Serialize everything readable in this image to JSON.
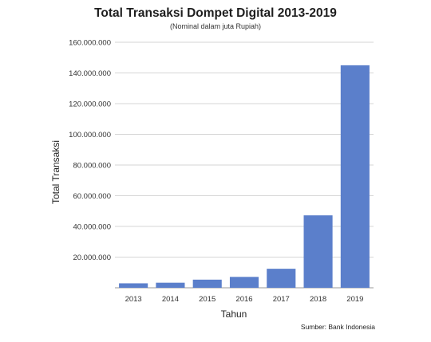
{
  "chart_data": {
    "type": "bar",
    "title": "Total Transaksi Dompet Digital 2013-2019",
    "subtitle": "(Nominal dalam juta Rupiah)",
    "xlabel": "Tahun",
    "ylabel": "Total Transaksi",
    "categories": [
      "2013",
      "2014",
      "2015",
      "2016",
      "2017",
      "2018",
      "2019"
    ],
    "values": [
      2900000,
      3300000,
      5300000,
      7100000,
      12400000,
      47200000,
      145000000
    ],
    "ylim": [
      0,
      160000000
    ],
    "yticks": [
      "20.000.000",
      "40.000.000",
      "60.000.000",
      "80.000.000",
      "100.000.000",
      "120.000.000",
      "140.000.000",
      "160.000.000"
    ],
    "bar_color": "#5b7fcb",
    "grid": true,
    "legend": "none",
    "source": "Sumber: Bank Indonesia"
  }
}
